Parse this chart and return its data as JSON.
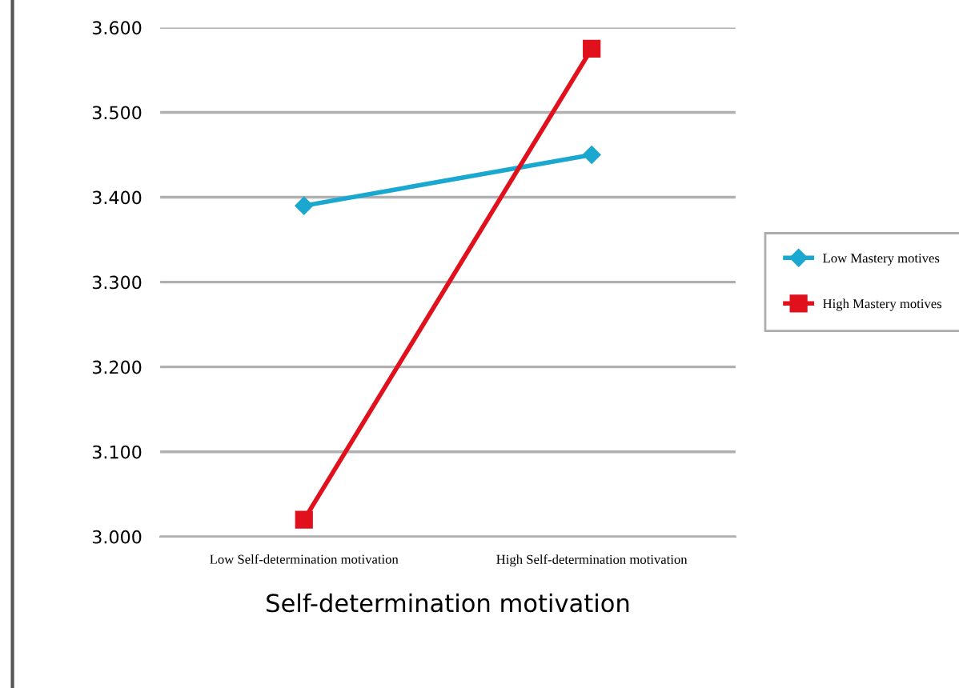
{
  "chart_data": {
    "type": "line",
    "xlabel": "Self-determination motivation",
    "categories": [
      "Low Self-determination motivation",
      "High Self-determination motivation"
    ],
    "series": [
      {
        "name": "Low Mastery motives",
        "color": "#1aa7d0",
        "values": [
          3.39,
          3.45
        ],
        "marker": "diamond"
      },
      {
        "name": "High Mastery motives",
        "color": "#e0101c",
        "values": [
          3.02,
          3.575
        ],
        "marker": "square"
      }
    ],
    "ylim": [
      3.0,
      3.6
    ],
    "yticks": [
      {
        "value": 3.0,
        "label": "3.000"
      },
      {
        "value": 3.1,
        "label": "3.100"
      },
      {
        "value": 3.2,
        "label": "3.200"
      },
      {
        "value": 3.3,
        "label": "3.300"
      },
      {
        "value": 3.4,
        "label": "3.400"
      },
      {
        "value": 3.5,
        "label": "3.500"
      },
      {
        "value": 3.6,
        "label": "3.600"
      }
    ],
    "grid": "y",
    "legend": "right",
    "line_style": "solid"
  }
}
